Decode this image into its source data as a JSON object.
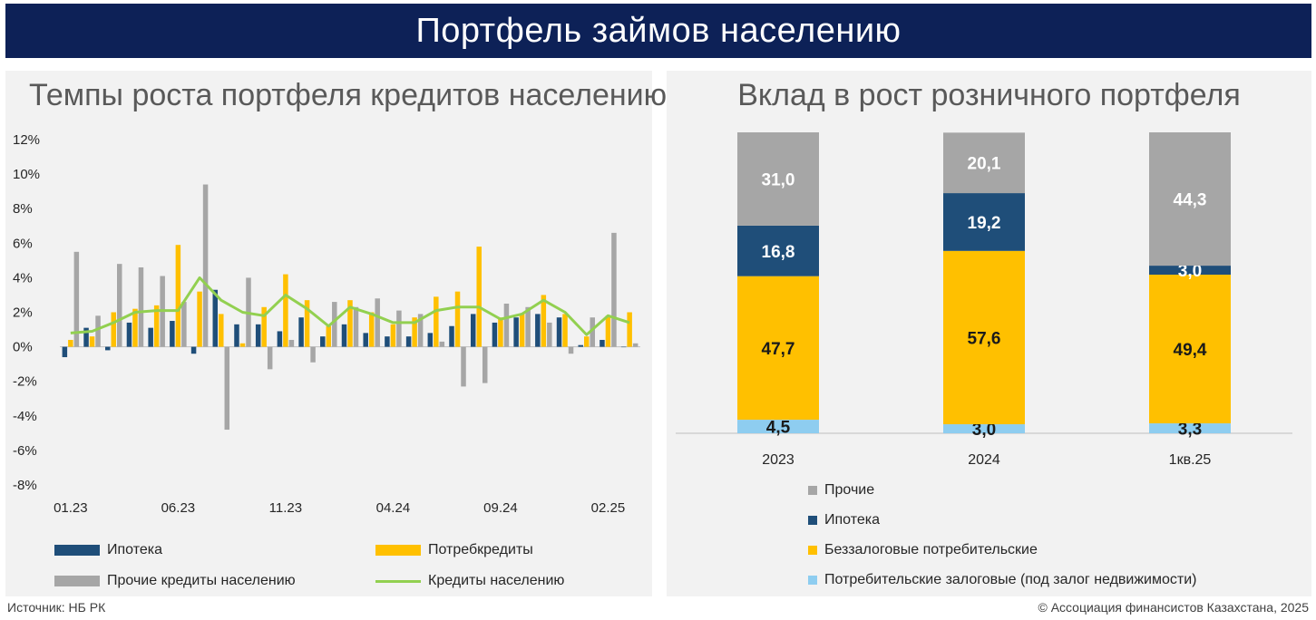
{
  "banner": {
    "title": "Портфель займов населению"
  },
  "left_panel": {
    "title": "Темпы роста портфеля кредитов населению, м/м",
    "legend": [
      {
        "label": "Ипотека"
      },
      {
        "label": "Потребкредиты"
      },
      {
        "label": "Прочие кредиты населению"
      },
      {
        "label": "Кредиты населению"
      }
    ]
  },
  "right_panel": {
    "title": "Вклад в рост розничного портфеля",
    "legend": [
      {
        "label": "Прочие"
      },
      {
        "label": "Ипотека"
      },
      {
        "label": "Беззалоговые потребительские"
      },
      {
        "label": "Потребительские залоговые (под залог недвижимости)"
      }
    ]
  },
  "footer": {
    "source": "Источник: НБ РК",
    "copyright": "© Ассоциация финансистов Казахстана, 2025"
  },
  "colors": {
    "mortgage": "#1f4e79",
    "consumer": "#ffc000",
    "other": "#a6a6a6",
    "total": "#92d050",
    "secured": "#8ecdf0",
    "banner": "#0d2157"
  },
  "chart_data": [
    {
      "type": "bar",
      "ylim": [
        -8,
        12
      ],
      "yticks": [
        "-8%",
        "-6%",
        "-4%",
        "-2%",
        "0%",
        "2%",
        "4%",
        "6%",
        "8%",
        "10%",
        "12%"
      ],
      "ytick_values": [
        -8,
        -6,
        -4,
        -2,
        0,
        2,
        4,
        6,
        8,
        10,
        12
      ],
      "categories": [
        "01.23",
        "02.23",
        "03.23",
        "04.23",
        "05.23",
        "06.23",
        "07.23",
        "08.23",
        "09.23",
        "10.23",
        "11.23",
        "12.23",
        "01.24",
        "02.24",
        "03.24",
        "04.24",
        "05.24",
        "06.24",
        "07.24",
        "08.24",
        "09.24",
        "10.24",
        "11.24",
        "12.24",
        "01.25",
        "02.25",
        "03.25"
      ],
      "xtick_labels": [
        "01.23",
        "06.23",
        "11.23",
        "04.24",
        "09.24",
        "02.25"
      ],
      "xtick_indices": [
        0,
        5,
        10,
        15,
        20,
        25
      ],
      "series": [
        {
          "name": "Ипотека",
          "kind": "bar",
          "color": "#1f4e79",
          "values": [
            -0.6,
            1.1,
            -0.2,
            1.4,
            1.1,
            1.5,
            -0.4,
            3.3,
            1.3,
            1.3,
            0.9,
            1.7,
            0.6,
            1.3,
            0.8,
            0.6,
            0.6,
            0.8,
            1.2,
            1.9,
            1.4,
            1.7,
            1.9,
            1.7,
            0.1,
            0.4,
            0.0
          ]
        },
        {
          "name": "Потребкредиты",
          "kind": "bar",
          "color": "#ffc000",
          "values": [
            0.4,
            0.6,
            2.0,
            2.2,
            2.4,
            5.9,
            3.2,
            1.9,
            0.2,
            2.3,
            4.2,
            2.7,
            1.2,
            2.7,
            2.0,
            1.3,
            1.7,
            2.9,
            3.2,
            5.8,
            1.7,
            1.9,
            3.0,
            1.9,
            0.6,
            1.8,
            2.0
          ]
        },
        {
          "name": "Прочие кредиты населению",
          "kind": "bar",
          "color": "#a6a6a6",
          "values": [
            5.5,
            1.8,
            4.8,
            4.6,
            4.1,
            2.6,
            9.4,
            -4.8,
            4.0,
            -1.3,
            0.4,
            -0.9,
            2.6,
            2.3,
            2.8,
            2.1,
            1.9,
            0.3,
            -2.3,
            -2.1,
            2.5,
            2.3,
            1.4,
            -0.4,
            1.7,
            6.6,
            0.2
          ]
        },
        {
          "name": "Кредиты населению",
          "kind": "line",
          "color": "#92d050",
          "values": [
            0.8,
            0.9,
            1.4,
            2.0,
            2.1,
            2.1,
            4.0,
            2.7,
            2.0,
            1.8,
            3.0,
            2.2,
            1.2,
            2.3,
            1.9,
            1.4,
            1.4,
            2.1,
            2.3,
            2.3,
            1.6,
            1.9,
            2.7,
            2.0,
            0.7,
            1.8,
            1.4
          ]
        }
      ]
    },
    {
      "type": "bar",
      "stacked": true,
      "ylim": [
        0,
        100
      ],
      "categories": [
        "2023",
        "2024",
        "1кв.25"
      ],
      "series": [
        {
          "name": "Потребительские залоговые (под залог недвижимости)",
          "color": "#8ecdf0",
          "labels": [
            "4,5",
            "3,0",
            "3,3"
          ],
          "values": [
            4.5,
            3.0,
            3.3
          ]
        },
        {
          "name": "Беззалоговые потребительские",
          "color": "#ffc000",
          "labels": [
            "47,7",
            "57,6",
            "49,4"
          ],
          "values": [
            47.7,
            57.6,
            49.4
          ]
        },
        {
          "name": "Ипотека",
          "color": "#1f4e79",
          "labels": [
            "16,8",
            "19,2",
            "3,0"
          ],
          "values": [
            16.8,
            19.2,
            3.0
          ]
        },
        {
          "name": "Прочие",
          "color": "#a6a6a6",
          "labels": [
            "31,0",
            "20,1",
            "44,3"
          ],
          "values": [
            31.0,
            20.1,
            44.3
          ]
        }
      ]
    }
  ]
}
